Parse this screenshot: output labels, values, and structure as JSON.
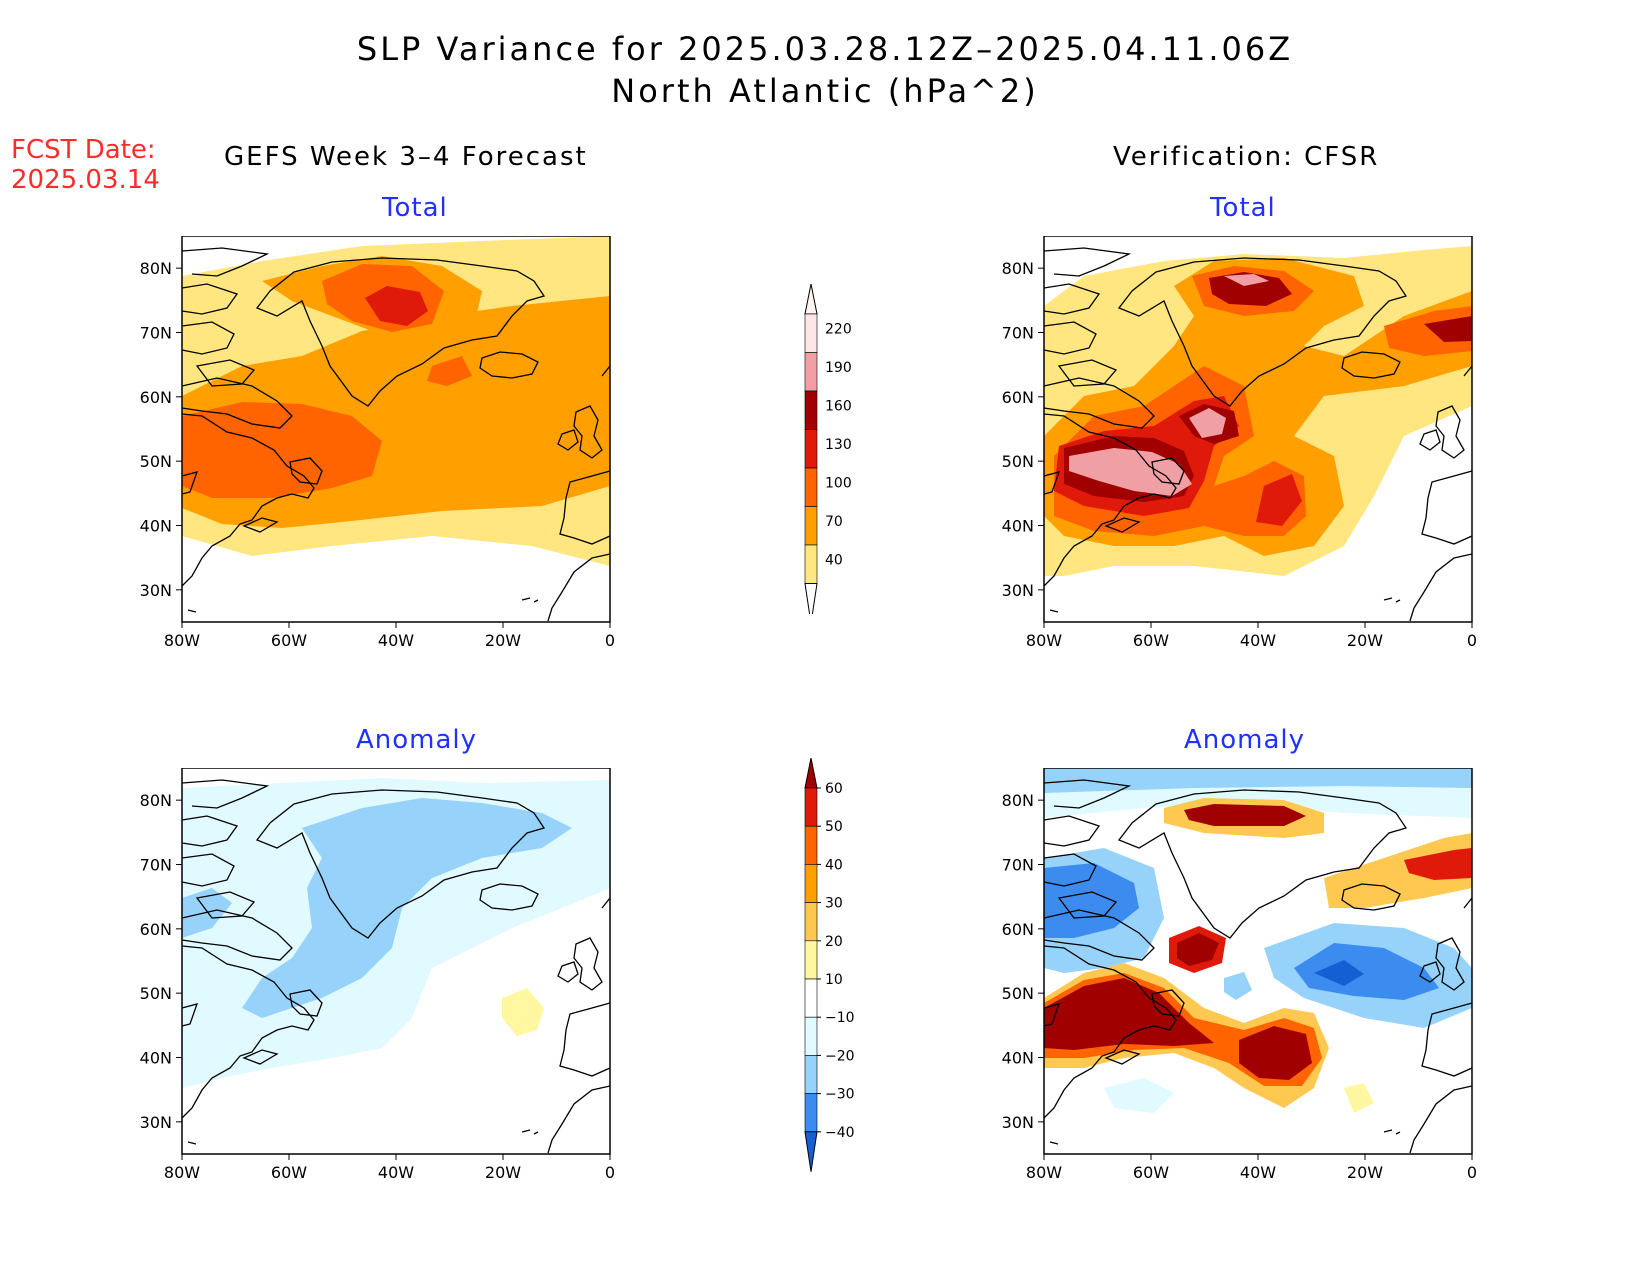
{
  "header": {
    "title_line1": "SLP Variance for 2025.03.28.12Z–2025.04.11.06Z",
    "title_line2": "North Atlantic (hPa^2)",
    "fcst_date_label": "FCST Date:",
    "fcst_date_value": "2025.03.14"
  },
  "columns": {
    "left_title": "GEFS Week 3–4 Forecast",
    "right_title": "Verification: CFSR"
  },
  "panels": {
    "forecast_total": {
      "subtitle": "Total"
    },
    "forecast_anomaly": {
      "subtitle": "Anomaly"
    },
    "verif_total": {
      "subtitle": "Total"
    },
    "verif_anomaly": {
      "subtitle": "Anomaly"
    }
  },
  "axes": {
    "lat_ticks": [
      "80N",
      "70N",
      "60N",
      "50N",
      "40N",
      "30N"
    ],
    "lon_ticks": [
      "80W",
      "60W",
      "40W",
      "20W",
      "0"
    ]
  },
  "colorbars": {
    "total": {
      "levels": [
        "220",
        "190",
        "160",
        "130",
        "100",
        "70",
        "40"
      ],
      "colors": [
        "#ffe6e6",
        "#f0a0a5",
        "#a00000",
        "#e01a0a",
        "#ff6400",
        "#ffa000",
        "#ffe680"
      ]
    },
    "anomaly": {
      "levels": [
        "60",
        "50",
        "40",
        "30",
        "20",
        "10",
        "−10",
        "−20",
        "−30",
        "−40"
      ],
      "colors": [
        "#a00000",
        "#e01a0a",
        "#ff6400",
        "#ffa000",
        "#ffc850",
        "#fff8a0",
        "#ffffff",
        "#e0faff",
        "#96d2fa",
        "#3c8cf0",
        "#1460d2"
      ]
    }
  },
  "chart_data": [
    {
      "type": "heatmap",
      "name": "forecast_total",
      "xlim": [
        -80,
        0
      ],
      "ylim": [
        25,
        85
      ],
      "contour_levels": [
        40,
        70,
        100,
        130,
        160,
        190,
        220
      ],
      "features": [
        {
          "level": 40,
          "lon": -40,
          "lat": 55
        },
        {
          "level": 70,
          "lon": -45,
          "lat": 55
        },
        {
          "level": 100,
          "lon": -40,
          "lat": 76
        },
        {
          "level": 100,
          "lon": -65,
          "lat": 50
        },
        {
          "level": 130,
          "lon": -39,
          "lat": 75
        }
      ]
    },
    {
      "type": "heatmap",
      "name": "forecast_anomaly",
      "xlim": [
        -80,
        0
      ],
      "ylim": [
        25,
        85
      ],
      "contour_levels": [
        -40,
        -30,
        -20,
        -10,
        10,
        20,
        30,
        40,
        50,
        60
      ],
      "features": [
        {
          "level": -20,
          "lon": -45,
          "lat": 60
        },
        {
          "level": 10,
          "lon": -15,
          "lat": 48
        }
      ]
    },
    {
      "type": "heatmap",
      "name": "verif_total",
      "xlim": [
        -80,
        0
      ],
      "ylim": [
        25,
        85
      ],
      "contour_levels": [
        40,
        70,
        100,
        130,
        160,
        190,
        220
      ],
      "features": [
        {
          "level": 190,
          "lon": -66,
          "lat": 46
        },
        {
          "level": 190,
          "lon": -50,
          "lat": 55
        },
        {
          "level": 190,
          "lon": -42,
          "lat": 77
        },
        {
          "level": 130,
          "lon": -35,
          "lat": 43
        },
        {
          "level": 160,
          "lon": -5,
          "lat": 70
        }
      ]
    },
    {
      "type": "heatmap",
      "name": "verif_anomaly",
      "xlim": [
        -80,
        0
      ],
      "ylim": [
        25,
        85
      ],
      "contour_levels": [
        -40,
        -30,
        -20,
        -10,
        10,
        20,
        30,
        40,
        50,
        60
      ],
      "features": [
        {
          "level": 60,
          "lon": -70,
          "lat": 48
        },
        {
          "level": 60,
          "lon": -35,
          "lat": 42
        },
        {
          "level": 60,
          "lon": -42,
          "lat": 77
        },
        {
          "level": 60,
          "lon": -5,
          "lat": 70
        },
        {
          "level": 50,
          "lon": -52,
          "lat": 57
        },
        {
          "level": -30,
          "lon": -68,
          "lat": 64
        },
        {
          "level": -30,
          "lon": -23,
          "lat": 54
        }
      ]
    }
  ]
}
